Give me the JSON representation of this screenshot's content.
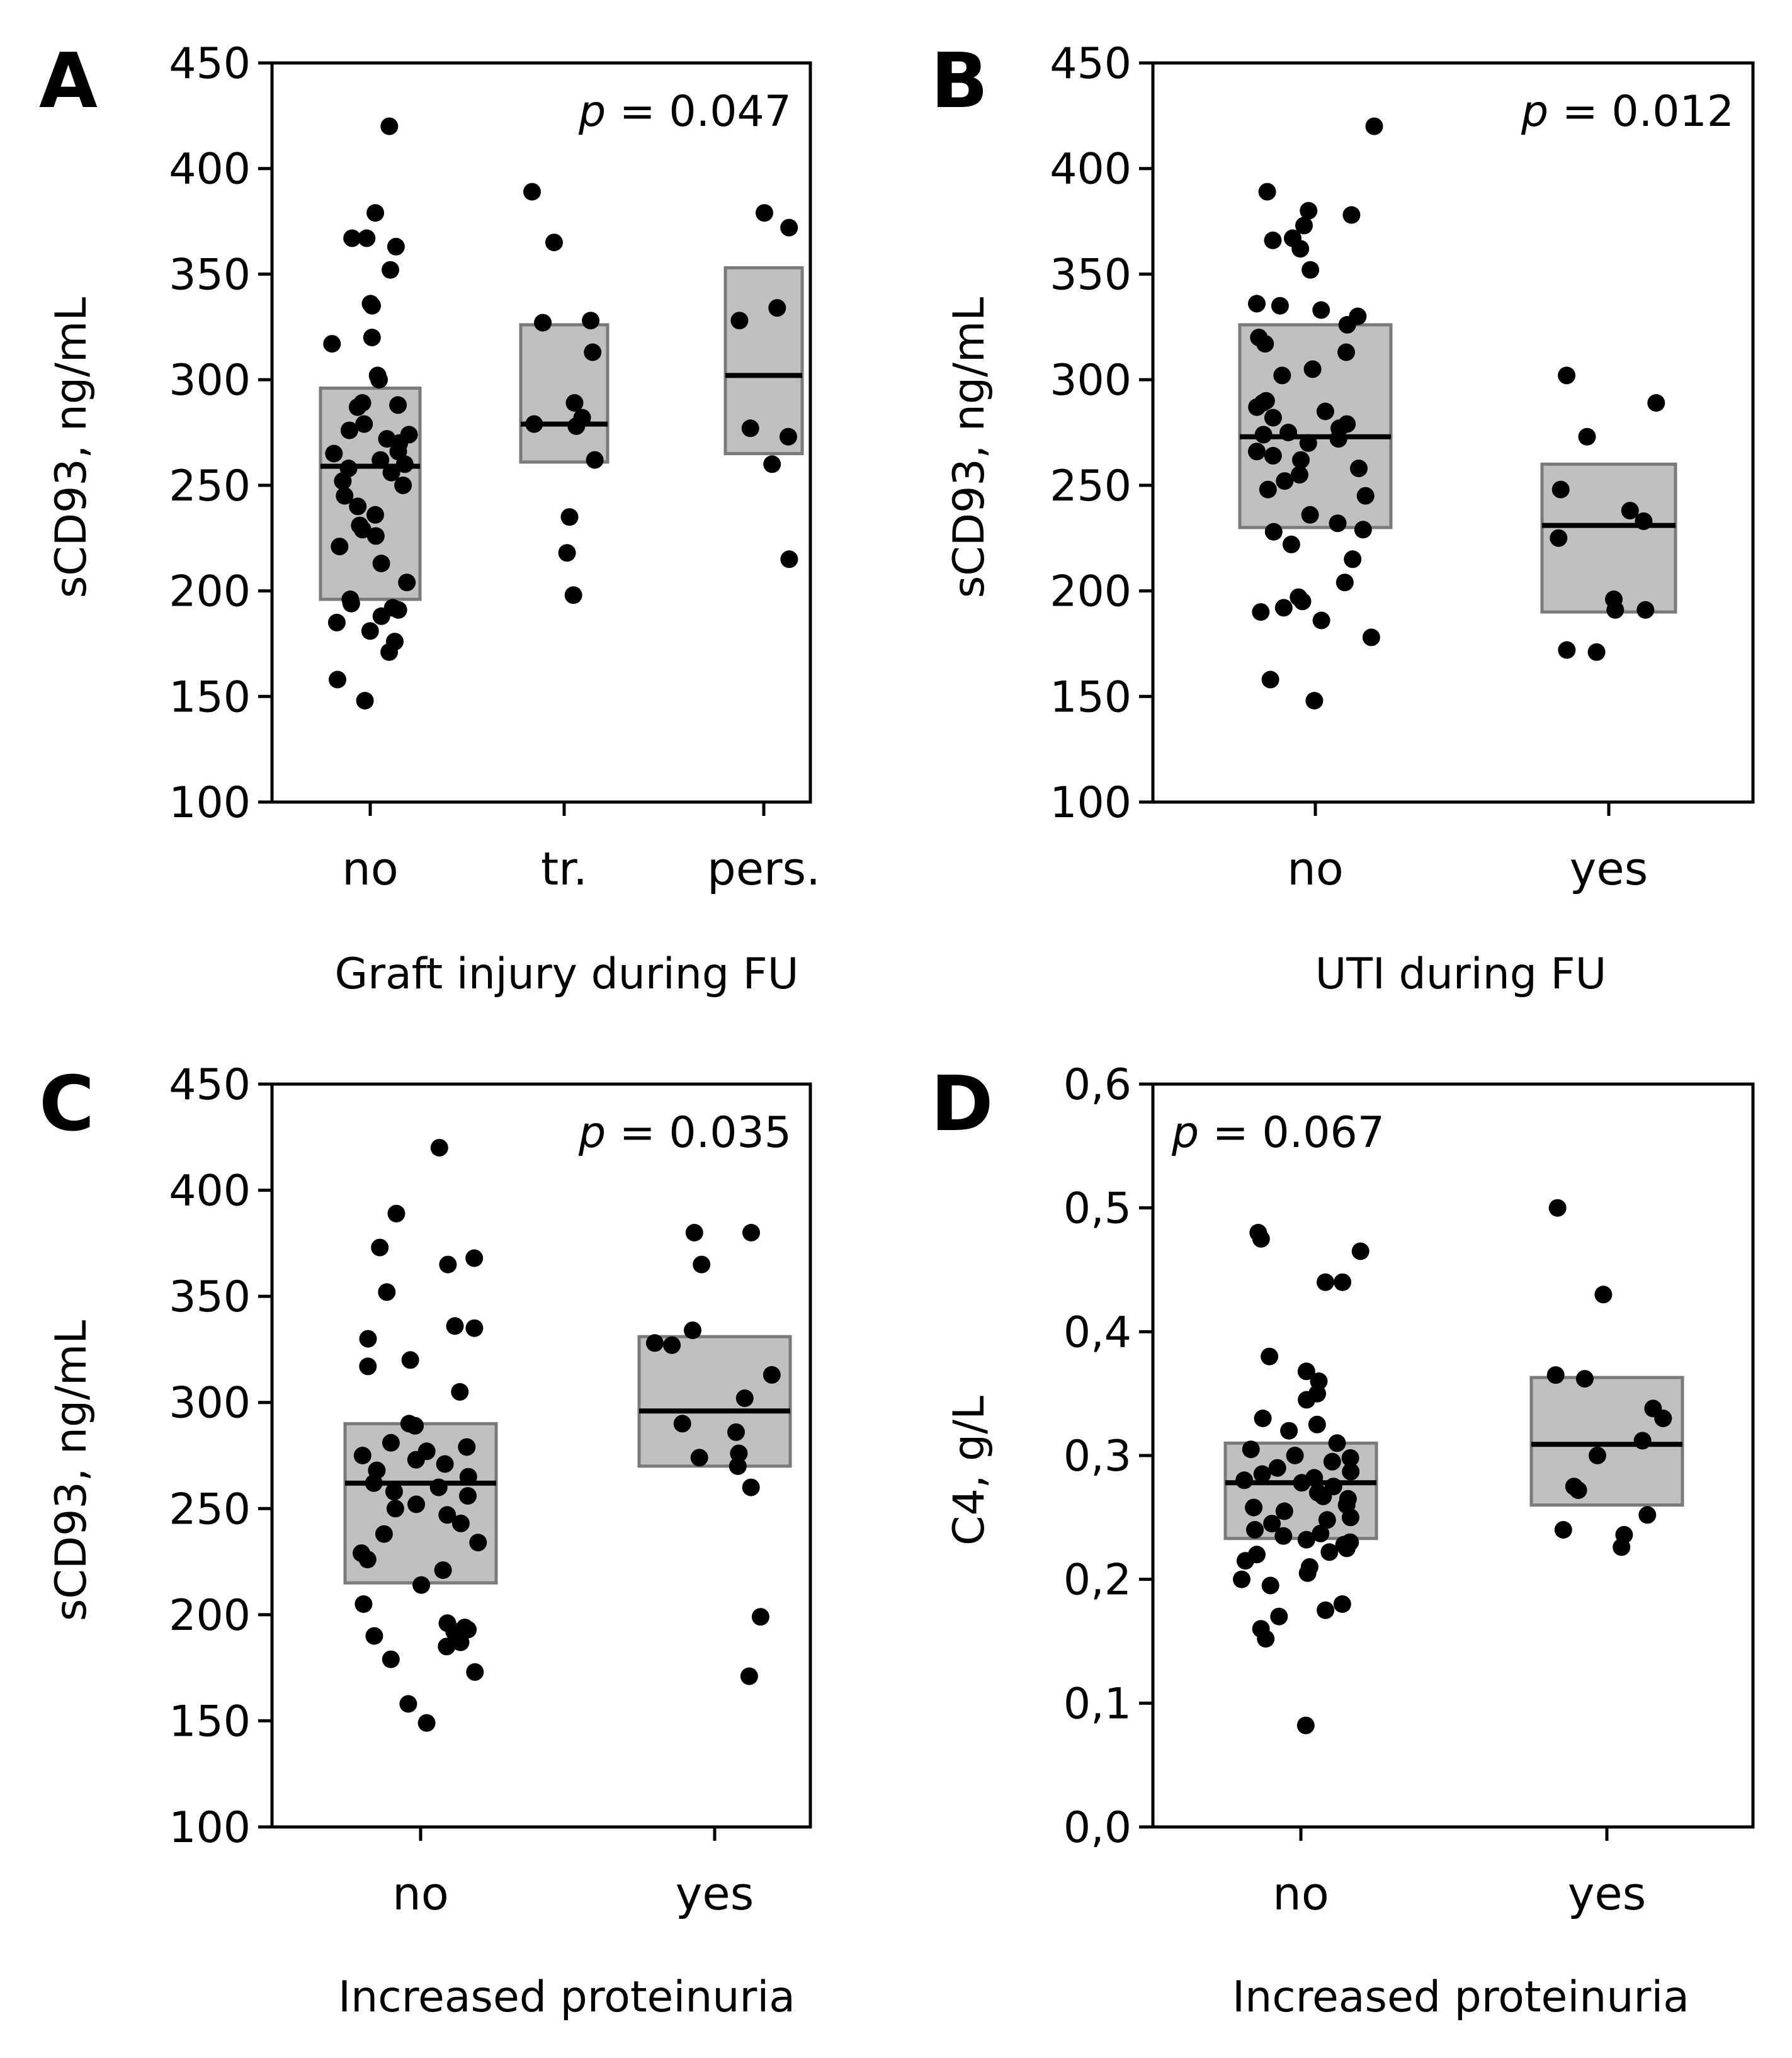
{
  "chart_data": [
    {
      "panel_label": "A",
      "type": "box-dot",
      "ylabel": "sCD93, ng/mL",
      "xlabel": "Graft injury during FU",
      "ylim": [
        100,
        450
      ],
      "yticks": [
        100,
        150,
        200,
        250,
        300,
        350,
        400,
        450
      ],
      "ytick_labels": [
        "100",
        "150",
        "200",
        "250",
        "300",
        "350",
        "400",
        "450"
      ],
      "p_prefix": "p",
      "p_value": "= 0.047",
      "p_position": "top-right",
      "box_color": "#c0c0c0",
      "categories": [
        "no",
        "tr.",
        "pers."
      ],
      "series": [
        {
          "name": "no",
          "q1": 196,
          "median": 259,
          "q3": 296,
          "points": [
            420,
            379,
            367,
            367,
            363,
            352,
            336,
            335,
            320,
            317,
            302,
            300,
            289,
            288,
            287,
            279,
            276,
            274,
            272,
            270,
            266,
            265,
            262,
            260,
            258,
            256,
            252,
            250,
            245,
            240,
            236,
            231,
            229,
            226,
            221,
            213,
            204,
            196,
            194,
            192,
            191,
            188,
            185,
            181,
            176,
            171,
            158,
            148
          ]
        },
        {
          "name": "tr.",
          "q1": 261,
          "median": 279,
          "q3": 326,
          "points": [
            389,
            365,
            328,
            327,
            313,
            289,
            282,
            279,
            278,
            262,
            235,
            218,
            198
          ]
        },
        {
          "name": "pers.",
          "q1": 265,
          "median": 302,
          "q3": 353,
          "points": [
            379,
            372,
            334,
            328,
            277,
            273,
            260,
            215
          ]
        }
      ]
    },
    {
      "panel_label": "B",
      "type": "box-dot",
      "ylabel": "sCD93, ng/mL",
      "xlabel": "UTI during FU",
      "ylim": [
        100,
        450
      ],
      "yticks": [
        100,
        150,
        200,
        250,
        300,
        350,
        400,
        450
      ],
      "ytick_labels": [
        "100",
        "150",
        "200",
        "250",
        "300",
        "350",
        "400",
        "450"
      ],
      "p_prefix": "p",
      "p_value": "= 0.012",
      "p_position": "top-right",
      "box_color": "#c0c0c0",
      "categories": [
        "no",
        "yes"
      ],
      "series": [
        {
          "name": "no",
          "q1": 230,
          "median": 273,
          "q3": 326,
          "points": [
            420,
            389,
            380,
            378,
            373,
            367,
            366,
            362,
            352,
            336,
            335,
            333,
            330,
            326,
            320,
            317,
            313,
            305,
            302,
            290,
            289,
            287,
            285,
            282,
            279,
            277,
            275,
            274,
            272,
            270,
            266,
            264,
            262,
            258,
            255,
            252,
            248,
            245,
            236,
            232,
            229,
            228,
            222,
            215,
            204,
            197,
            195,
            192,
            190,
            186,
            178,
            158,
            148
          ]
        },
        {
          "name": "yes",
          "q1": 190,
          "median": 231,
          "q3": 260,
          "points": [
            302,
            289,
            273,
            248,
            238,
            233,
            225,
            196,
            191,
            191,
            172,
            171
          ]
        }
      ]
    },
    {
      "panel_label": "C",
      "type": "box-dot",
      "ylabel": "sCD93, ng/mL",
      "xlabel": "Increased proteinuria",
      "ylim": [
        100,
        450
      ],
      "yticks": [
        100,
        150,
        200,
        250,
        300,
        350,
        400,
        450
      ],
      "ytick_labels": [
        "100",
        "150",
        "200",
        "250",
        "300",
        "350",
        "400",
        "450"
      ],
      "p_prefix": "p",
      "p_value": "= 0.035",
      "p_position": "top-right",
      "box_color": "#c0c0c0",
      "categories": [
        "no",
        "yes"
      ],
      "series": [
        {
          "name": "no",
          "q1": 215,
          "median": 262,
          "q3": 290,
          "points": [
            420,
            389,
            373,
            368,
            365,
            352,
            336,
            335,
            330,
            320,
            317,
            305,
            290,
            289,
            281,
            279,
            277,
            275,
            273,
            271,
            268,
            265,
            262,
            260,
            258,
            256,
            252,
            250,
            247,
            243,
            238,
            234,
            229,
            226,
            221,
            214,
            205,
            196,
            194,
            193,
            192,
            190,
            189,
            187,
            185,
            179,
            173,
            158,
            149
          ]
        },
        {
          "name": "yes",
          "q1": 270,
          "median": 296,
          "q3": 331,
          "points": [
            380,
            380,
            365,
            334,
            328,
            327,
            313,
            302,
            290,
            286,
            276,
            274,
            270,
            260,
            199,
            171
          ]
        }
      ]
    },
    {
      "panel_label": "D",
      "type": "box-dot",
      "ylabel": "C4, g/L",
      "xlabel": "Increased proteinuria",
      "ylim": [
        0.0,
        0.6
      ],
      "yticks": [
        0.0,
        0.1,
        0.2,
        0.3,
        0.4,
        0.5,
        0.6
      ],
      "ytick_labels": [
        "0,0",
        "0,1",
        "0,2",
        "0,3",
        "0,4",
        "0,5",
        "0,6"
      ],
      "p_prefix": "p",
      "p_value": "= 0.067",
      "p_position": "top-left",
      "box_color": "#c0c0c0",
      "categories": [
        "no",
        "yes"
      ],
      "series": [
        {
          "name": "no",
          "q1": 0.233,
          "median": 0.278,
          "q3": 0.31,
          "points": [
            0.48,
            0.475,
            0.465,
            0.44,
            0.44,
            0.38,
            0.368,
            0.36,
            0.35,
            0.345,
            0.33,
            0.325,
            0.32,
            0.31,
            0.305,
            0.3,
            0.298,
            0.295,
            0.29,
            0.287,
            0.285,
            0.282,
            0.28,
            0.278,
            0.275,
            0.27,
            0.267,
            0.265,
            0.26,
            0.258,
            0.255,
            0.25,
            0.248,
            0.245,
            0.24,
            0.237,
            0.235,
            0.232,
            0.23,
            0.228,
            0.225,
            0.222,
            0.22,
            0.215,
            0.21,
            0.205,
            0.2,
            0.195,
            0.18,
            0.175,
            0.17,
            0.16,
            0.152,
            0.082
          ]
        },
        {
          "name": "yes",
          "q1": 0.26,
          "median": 0.309,
          "q3": 0.363,
          "points": [
            0.5,
            0.43,
            0.365,
            0.362,
            0.338,
            0.33,
            0.312,
            0.3,
            0.275,
            0.272,
            0.252,
            0.24,
            0.236,
            0.226
          ]
        }
      ]
    }
  ]
}
